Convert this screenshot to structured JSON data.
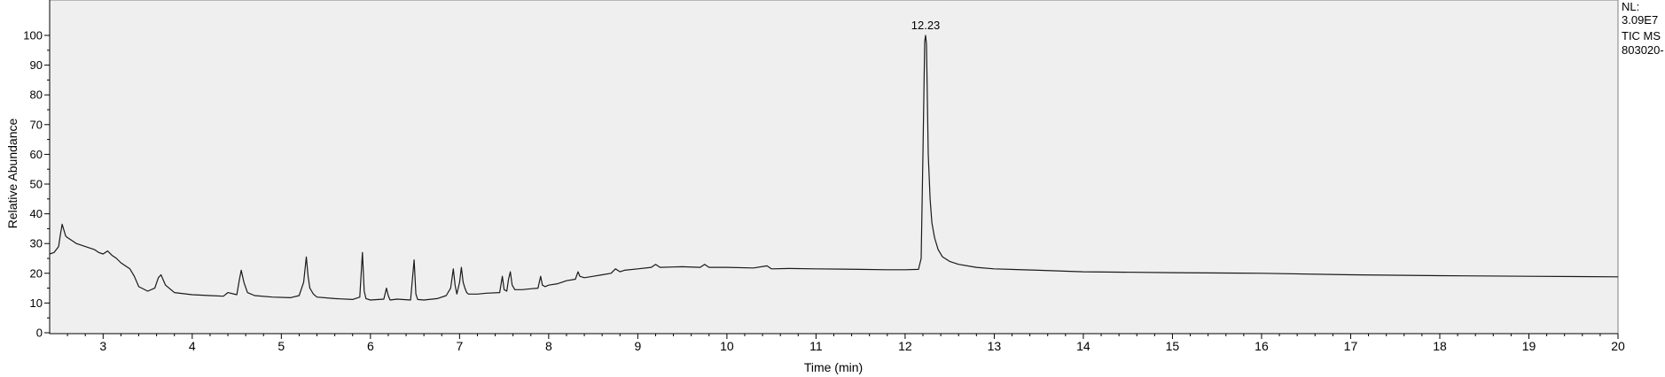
{
  "chart_data": {
    "type": "line",
    "title": "",
    "xlabel": "Time (min)",
    "ylabel": "Relative Abundance",
    "xlim": [
      2.4,
      20
    ],
    "ylim": [
      0,
      100
    ],
    "xticks": [
      "3",
      "4",
      "5",
      "6",
      "7",
      "8",
      "9",
      "10",
      "11",
      "12",
      "13",
      "14",
      "15",
      "16",
      "17",
      "18",
      "19",
      "20"
    ],
    "yticks": [
      "0",
      "10",
      "20",
      "30",
      "40",
      "50",
      "60",
      "70",
      "80",
      "90",
      "100"
    ],
    "grid": false,
    "plot_background": "#efefef",
    "line_color": "#1a1a1a",
    "peak_annotation": {
      "x": 12.23,
      "label": "12.23"
    },
    "side_info": [
      "NL:",
      "3.09E7",
      "TIC  MS",
      "803020-"
    ],
    "series": [
      {
        "x": [
          2.4,
          2.45,
          2.5,
          2.52,
          2.54,
          2.56,
          2.58,
          2.6,
          2.65,
          2.7,
          2.8,
          2.9,
          2.95,
          3.0,
          3.05,
          3.1,
          3.15,
          3.2,
          3.3,
          3.35,
          3.4,
          3.5,
          3.58,
          3.62,
          3.65,
          3.7,
          3.8,
          4.0,
          4.2,
          4.35,
          4.4,
          4.5,
          4.53,
          4.55,
          4.58,
          4.62,
          4.7,
          4.9,
          5.1,
          5.2,
          5.25,
          5.28,
          5.3,
          5.32,
          5.34,
          5.36,
          5.4,
          5.6,
          5.8,
          5.88,
          5.91,
          5.93,
          5.95,
          6.0,
          6.15,
          6.18,
          6.2,
          6.22,
          6.3,
          6.45,
          6.49,
          6.51,
          6.53,
          6.6,
          6.75,
          6.85,
          6.9,
          6.93,
          6.95,
          6.97,
          7.0,
          7.02,
          7.04,
          7.06,
          7.08,
          7.1,
          7.2,
          7.3,
          7.45,
          7.48,
          7.5,
          7.53,
          7.55,
          7.57,
          7.59,
          7.62,
          7.7,
          7.8,
          7.88,
          7.91,
          7.93,
          7.96,
          8.0,
          8.1,
          8.2,
          8.3,
          8.33,
          8.35,
          8.4,
          8.5,
          8.6,
          8.7,
          8.75,
          8.8,
          8.85,
          9.0,
          9.15,
          9.2,
          9.25,
          9.5,
          9.7,
          9.75,
          9.8,
          10.0,
          10.3,
          10.45,
          10.5,
          10.7,
          11.0,
          11.3,
          11.5,
          11.8,
          12.0,
          12.15,
          12.18,
          12.2,
          12.22,
          12.23,
          12.24,
          12.26,
          12.28,
          12.3,
          12.33,
          12.37,
          12.42,
          12.5,
          12.6,
          12.8,
          13.0,
          13.5,
          14.0,
          15.0,
          16.0,
          17.0,
          18.0,
          19.0,
          20.0
        ],
        "values": [
          26.5,
          27.0,
          29.0,
          33.0,
          36.5,
          34.5,
          32.5,
          32.0,
          31.0,
          30.0,
          29.0,
          28.0,
          27.0,
          26.5,
          27.5,
          26.0,
          25.0,
          23.5,
          21.5,
          19.0,
          15.5,
          14.0,
          15.0,
          18.5,
          19.5,
          16.0,
          13.5,
          12.8,
          12.5,
          12.3,
          13.5,
          12.8,
          18.0,
          21.0,
          17.0,
          13.5,
          12.5,
          12.0,
          11.8,
          12.5,
          17.0,
          25.5,
          19.0,
          15.0,
          14.0,
          13.0,
          12.0,
          11.5,
          11.2,
          12.0,
          27.0,
          14.0,
          11.5,
          11.0,
          11.3,
          15.0,
          12.5,
          11.0,
          11.3,
          11.0,
          24.5,
          13.0,
          11.2,
          11.0,
          11.5,
          12.5,
          15.0,
          21.5,
          16.0,
          13.0,
          17.0,
          22.0,
          17.0,
          15.0,
          13.5,
          13.0,
          13.0,
          13.3,
          13.5,
          19.0,
          14.5,
          14.0,
          18.0,
          20.5,
          16.0,
          14.5,
          14.5,
          14.8,
          15.0,
          19.0,
          16.0,
          15.5,
          16.0,
          16.5,
          17.5,
          18.0,
          20.5,
          19.0,
          18.5,
          19.0,
          19.5,
          20.0,
          21.5,
          20.5,
          21.0,
          21.5,
          22.0,
          23.0,
          22.0,
          22.2,
          22.0,
          23.0,
          22.0,
          22.0,
          21.8,
          22.5,
          21.5,
          21.6,
          21.5,
          21.4,
          21.3,
          21.2,
          21.2,
          21.3,
          25.0,
          60.0,
          98.0,
          100.0,
          97.0,
          60.0,
          45.0,
          37.0,
          32.0,
          28.0,
          25.5,
          24.0,
          23.0,
          22.0,
          21.5,
          21.0,
          20.5,
          20.2,
          20.0,
          19.5,
          19.2,
          19.0,
          18.8
        ]
      }
    ]
  }
}
